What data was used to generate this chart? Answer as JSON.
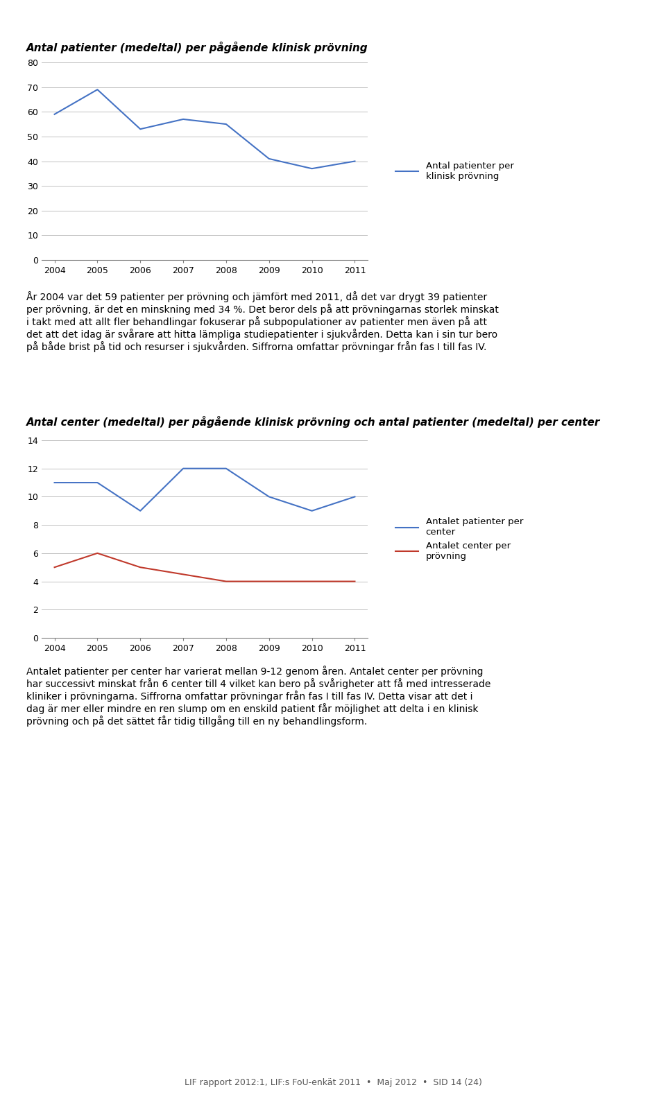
{
  "page_bg": "#ffffff",
  "header_bg": "#b8c9d9",
  "chart1_title": "Antal patienter (medeltal) per pågående klinisk prövning",
  "chart1_years": [
    2004,
    2005,
    2006,
    2007,
    2008,
    2009,
    2010,
    2011
  ],
  "chart1_values": [
    59,
    69,
    53,
    57,
    55,
    41,
    37,
    40
  ],
  "chart1_color": "#4472c4",
  "chart1_ylim": [
    0,
    80
  ],
  "chart1_yticks": [
    0,
    10,
    20,
    30,
    40,
    50,
    60,
    70,
    80
  ],
  "chart1_legend": "Antal patienter per\nklinisk prövning",
  "para1_line1": "År 2004 var det 59 patienter per prövning och jämfört med 2011, då det var drygt 39 patienter",
  "para1_line2": "per prövning, är det en minskning med 34 %. Det beror dels på att prövningarnas storlek minskat",
  "para1_line3": "i takt med att allt fler behandlingar fokuserar på subpopulationer av patienter men även på att",
  "para1_line4": "det att det idag är svårare att hitta lämpliga studiepatienter i sjukvården. Detta kan i sin tur bero",
  "para1_line5": "på både brist på tid och resurser i sjukvården. Siffrorna omfattar prövningar från fas I till fas IV.",
  "chart2_title": "Antal center (medeltal) per pågående klinisk prövning och antal patienter (medeltal) per center",
  "chart2_years": [
    2004,
    2005,
    2006,
    2007,
    2008,
    2009,
    2010,
    2011
  ],
  "chart2_patients": [
    11,
    11,
    9,
    12,
    12,
    10,
    9,
    10
  ],
  "chart2_centers": [
    5,
    6,
    5,
    4.5,
    4,
    4,
    4,
    4
  ],
  "chart2_color_patients": "#4472c4",
  "chart2_color_centers": "#c0392b",
  "chart2_ylim": [
    0,
    14
  ],
  "chart2_yticks": [
    0,
    2,
    4,
    6,
    8,
    10,
    12,
    14
  ],
  "chart2_legend_patients": "Antalet patienter per\ncenter",
  "chart2_legend_centers": "Antalet center per\nprövning",
  "para2_line1": "Antalet patienter per center har varierat mellan 9-12 genom åren. Antalet center per prövning",
  "para2_line2": "har successivt minskat från 6 center till 4 vilket kan bero på svårigheter att få med intresserade",
  "para2_line3": "kliniker i prövningarna. Siffrorna omfattar prövningar från fas I till fas IV. Detta visar att det i",
  "para2_line4": "dag är mer eller mindre en ren slump om en enskild patient får möjlighet att delta i en klinisk",
  "para2_line5": "prövning och på det sättet får tidig tillgång till en ny behandlingsform.",
  "footer": "LIF rapport 2012:1, LIF:s FoU-enkät 2011  •  Maj 2012  •  SID 14 (24)",
  "grid_color": "#c0c0c0",
  "spine_color": "#808080",
  "tick_color": "#000000"
}
